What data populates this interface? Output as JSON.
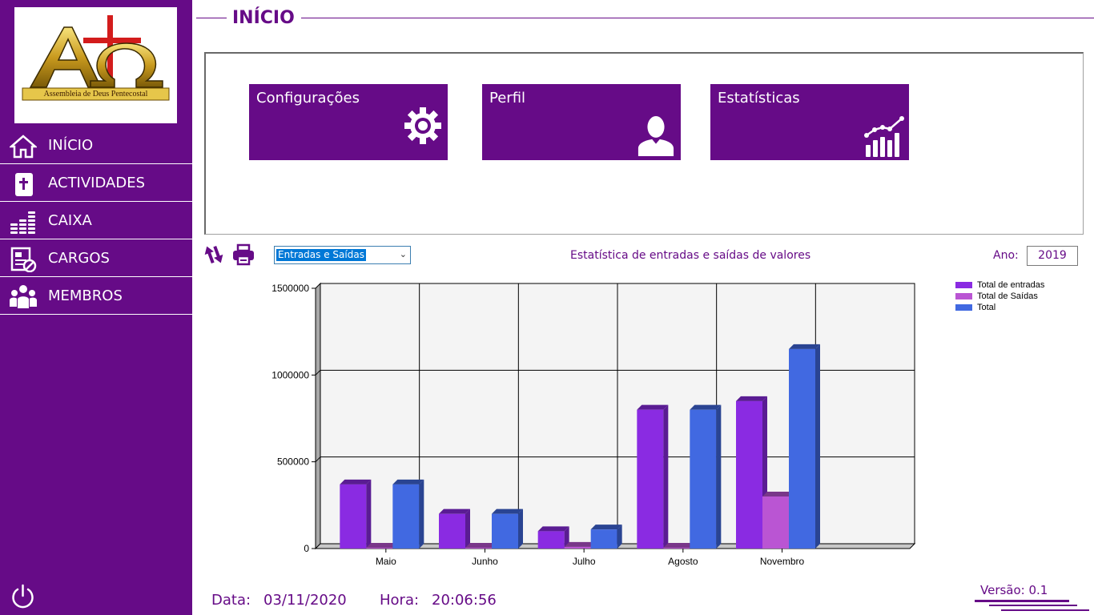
{
  "sidebar": {
    "logo_text": "Assembleia de Deus Pentecostal",
    "items": [
      {
        "label": "INÍCIO",
        "icon": "home-icon"
      },
      {
        "label": "ACTIVIDADES",
        "icon": "bible-icon"
      },
      {
        "label": "CAIXA",
        "icon": "coins-icon"
      },
      {
        "label": "CARGOS",
        "icon": "document-icon"
      },
      {
        "label": "MEMBROS",
        "icon": "people-icon"
      }
    ],
    "power_icon": "power-icon"
  },
  "header": {
    "title": "INÍCIO"
  },
  "tiles": [
    {
      "label": "Configurações",
      "icon": "gear-icon"
    },
    {
      "label": "Perfil",
      "icon": "user-icon"
    },
    {
      "label": "Estatísticas",
      "icon": "chart-icon"
    }
  ],
  "toolbar": {
    "refresh_icon": "refresh-icon",
    "print_icon": "printer-icon",
    "select_value": "Entradas e Saídas",
    "chart_heading": "Estatística de entradas e saídas de valores",
    "year_label": "Ano:",
    "year_value": "2019"
  },
  "chart_data": {
    "type": "bar",
    "categories": [
      "Maio",
      "Junho",
      "Julho",
      "Agosto",
      "Novembro"
    ],
    "series": [
      {
        "name": "Total de entradas",
        "color": "#8a2be2",
        "values": [
          370000,
          200000,
          100000,
          800000,
          850000
        ]
      },
      {
        "name": "Total de Saídas",
        "color": "#ba55d3",
        "values": [
          0,
          0,
          10000,
          0,
          300000
        ]
      },
      {
        "name": "Total",
        "color": "#4169e1",
        "values": [
          370000,
          200000,
          110000,
          800000,
          1150000
        ]
      }
    ],
    "yticks": [
      "0",
      "500000",
      "1000000",
      "1500000"
    ],
    "ylim": [
      0,
      1500000
    ],
    "grid": true,
    "legend_position": "top-right"
  },
  "footer": {
    "date_label": "Data:",
    "date_value": "03/11/2020",
    "time_label": "Hora:",
    "time_value": "20:06:56",
    "version": "Versão: 0.1"
  }
}
